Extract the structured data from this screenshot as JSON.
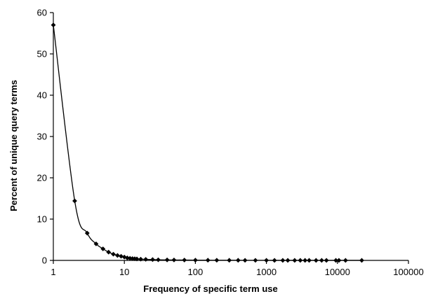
{
  "chart_data": {
    "type": "line",
    "title": "",
    "xlabel": "Frequency of specific term use",
    "ylabel": "Percent of unique query terms",
    "xscale": "log",
    "xlim": [
      1,
      100000
    ],
    "ylim": [
      0,
      60
    ],
    "x_ticks": [
      1,
      10,
      100,
      1000,
      10000,
      100000
    ],
    "x_tick_labels": [
      "1",
      "10",
      "100",
      "1000",
      "10000",
      "100000"
    ],
    "y_ticks": [
      0,
      10,
      20,
      30,
      40,
      50,
      60
    ],
    "y_tick_labels": [
      "0",
      "10",
      "20",
      "30",
      "40",
      "50",
      "60"
    ],
    "grid": false,
    "legend": "none",
    "marker": "diamond",
    "series": [
      {
        "color": "#000000",
        "x": [
          1,
          2,
          3,
          4,
          5,
          6,
          7,
          8,
          9,
          10,
          11,
          12,
          13,
          14,
          15,
          17,
          20,
          25,
          30,
          40,
          50,
          70,
          100,
          150,
          200,
          300,
          400,
          500,
          700,
          1000,
          1300,
          1700,
          2000,
          2500,
          3000,
          3500,
          4000,
          5000,
          6000,
          7000,
          9500,
          10500,
          13000,
          22000
        ],
        "y": [
          57.0,
          14.4,
          6.6,
          4.0,
          2.8,
          2.0,
          1.5,
          1.2,
          1.0,
          0.8,
          0.6,
          0.5,
          0.45,
          0.4,
          0.35,
          0.3,
          0.25,
          0.2,
          0.15,
          0.12,
          0.1,
          0.08,
          0.06,
          0.05,
          0.04,
          0.03,
          0.03,
          0.02,
          0.02,
          0.02,
          0.01,
          0.01,
          0.01,
          0.01,
          0.01,
          0.01,
          0.01,
          0.01,
          0.01,
          0.01,
          0.01,
          0.01,
          0.01,
          0.01
        ]
      }
    ]
  }
}
